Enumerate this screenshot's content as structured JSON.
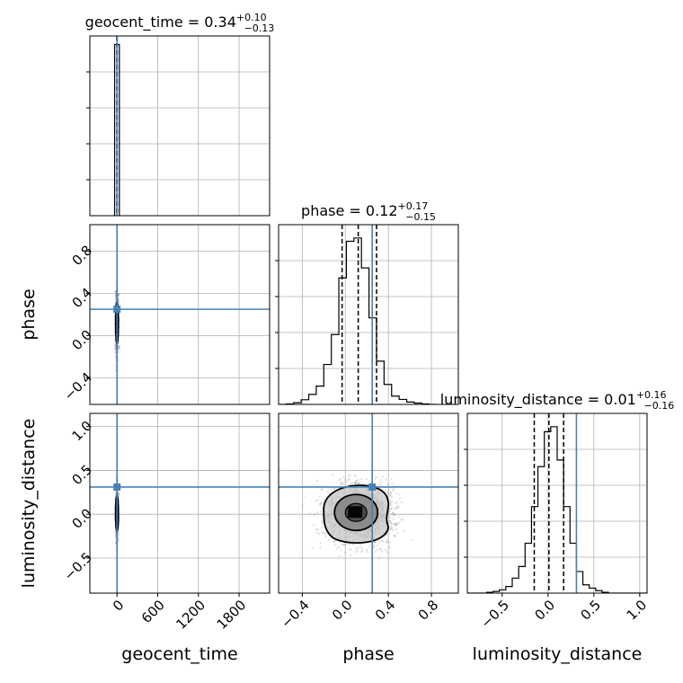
{
  "chart_data": {
    "type": "scatter",
    "title": "",
    "parameters": [
      "geocent_time",
      "phase",
      "luminosity_distance"
    ],
    "truths": {
      "geocent_time": 0,
      "phase": 0.25,
      "luminosity_distance": 0.31
    },
    "truth_color": "#4682b4",
    "grid": true,
    "subplots": {
      "geocent_time_hist": {
        "title_parts": {
          "name": "geocent_time",
          "median": "0.34",
          "plus": "+0.10",
          "minus": "−0.13"
        },
        "xlim": [
          -400,
          2250
        ],
        "bins": [
          [
            -35,
            0,
            60
          ],
          [
            0,
            35,
            60
          ]
        ],
        "quantiles": [
          0.21,
          0.34,
          0.44
        ]
      },
      "phase_hist": {
        "title_parts": {
          "name": "phase",
          "median": "0.12",
          "plus": "+0.17",
          "minus": "−0.15"
        },
        "xlim": [
          -0.62,
          1.05
        ],
        "bin_edges": [
          -0.62,
          -0.55,
          -0.48,
          -0.41,
          -0.34,
          -0.27,
          -0.2,
          -0.13,
          -0.06,
          0.01,
          0.08,
          0.15,
          0.22,
          0.29,
          0.36,
          0.43,
          0.5,
          0.57,
          0.64,
          0.71,
          0.78,
          0.85
        ],
        "counts": [
          0.0,
          0.003,
          0.01,
          0.028,
          0.06,
          0.11,
          0.24,
          0.42,
          0.76,
          0.98,
          1.0,
          0.82,
          0.52,
          0.26,
          0.12,
          0.05,
          0.03,
          0.014,
          0.008,
          0.003,
          0.0
        ],
        "quantiles": [
          -0.03,
          0.12,
          0.29
        ]
      },
      "luminosity_distance_hist": {
        "title_parts": {
          "name": "luminosity_distance",
          "median": "0.01",
          "plus": "+0.16",
          "minus": "−0.16"
        },
        "xlim": [
          -0.88,
          1.08
        ],
        "bin_edges": [
          -0.88,
          -0.81,
          -0.74,
          -0.67,
          -0.6,
          -0.53,
          -0.46,
          -0.39,
          -0.32,
          -0.25,
          -0.18,
          -0.11,
          -0.04,
          0.03,
          0.1,
          0.17,
          0.24,
          0.31,
          0.38,
          0.45,
          0.52,
          0.59,
          0.66,
          0.73,
          0.8,
          0.87,
          0.94,
          1.01,
          1.08
        ],
        "counts": [
          0.0,
          0.0,
          0.0,
          0.005,
          0.01,
          0.02,
          0.04,
          0.09,
          0.16,
          0.3,
          0.52,
          0.76,
          0.97,
          1.0,
          0.8,
          0.52,
          0.3,
          0.13,
          0.05,
          0.03,
          0.015,
          0.005,
          0.0,
          0.0,
          0.0,
          0.0,
          0.0,
          0.0
        ],
        "quantiles": [
          -0.15,
          0.01,
          0.17
        ]
      },
      "phase_vs_geocent_time": {
        "xlim": [
          -400,
          2250
        ],
        "ylim": [
          -0.65,
          1.05
        ],
        "center": [
          0,
          0.12
        ],
        "spread": [
          12,
          0.16
        ],
        "contour_half_widths": [
          [
            10,
            0.11
          ],
          [
            20,
            0.2
          ]
        ]
      },
      "luminosity_distance_vs_geocent_time": {
        "xlim": [
          -400,
          2250
        ],
        "ylim": [
          -0.9,
          1.15
        ],
        "center": [
          0,
          0.01
        ],
        "spread": [
          12,
          0.16
        ],
        "contour_half_widths": [
          [
            10,
            0.11
          ],
          [
            20,
            0.21
          ]
        ]
      },
      "luminosity_distance_vs_phase": {
        "xlim": [
          -0.62,
          1.05
        ],
        "ylim": [
          -0.9,
          1.15
        ],
        "center": [
          0.12,
          0.01
        ],
        "spread": [
          0.15,
          0.16
        ]
      }
    },
    "ticks": {
      "geocent_time": [
        "0",
        "600",
        "1200",
        "1800"
      ],
      "geocent_time_values": [
        0,
        600,
        1200,
        1800
      ],
      "phase": [
        "−0.4",
        "0.0",
        "0.4",
        "0.8"
      ],
      "phase_values": [
        -0.4,
        0.0,
        0.4,
        0.8
      ],
      "luminosity_distance_y": [
        "−0.5",
        "0.0",
        "0.5",
        "1.0"
      ],
      "luminosity_distance_y_values": [
        -0.5,
        0.0,
        0.5,
        1.0
      ],
      "luminosity_distance_x": [
        "−0.5",
        "0.0",
        "0.5",
        "1.0"
      ],
      "luminosity_distance_x_values": [
        -0.5,
        0.0,
        0.5,
        1.0
      ]
    },
    "xlabels": [
      "geocent_time",
      "phase",
      "luminosity_distance"
    ],
    "ylabels": [
      "phase",
      "luminosity_distance"
    ]
  }
}
